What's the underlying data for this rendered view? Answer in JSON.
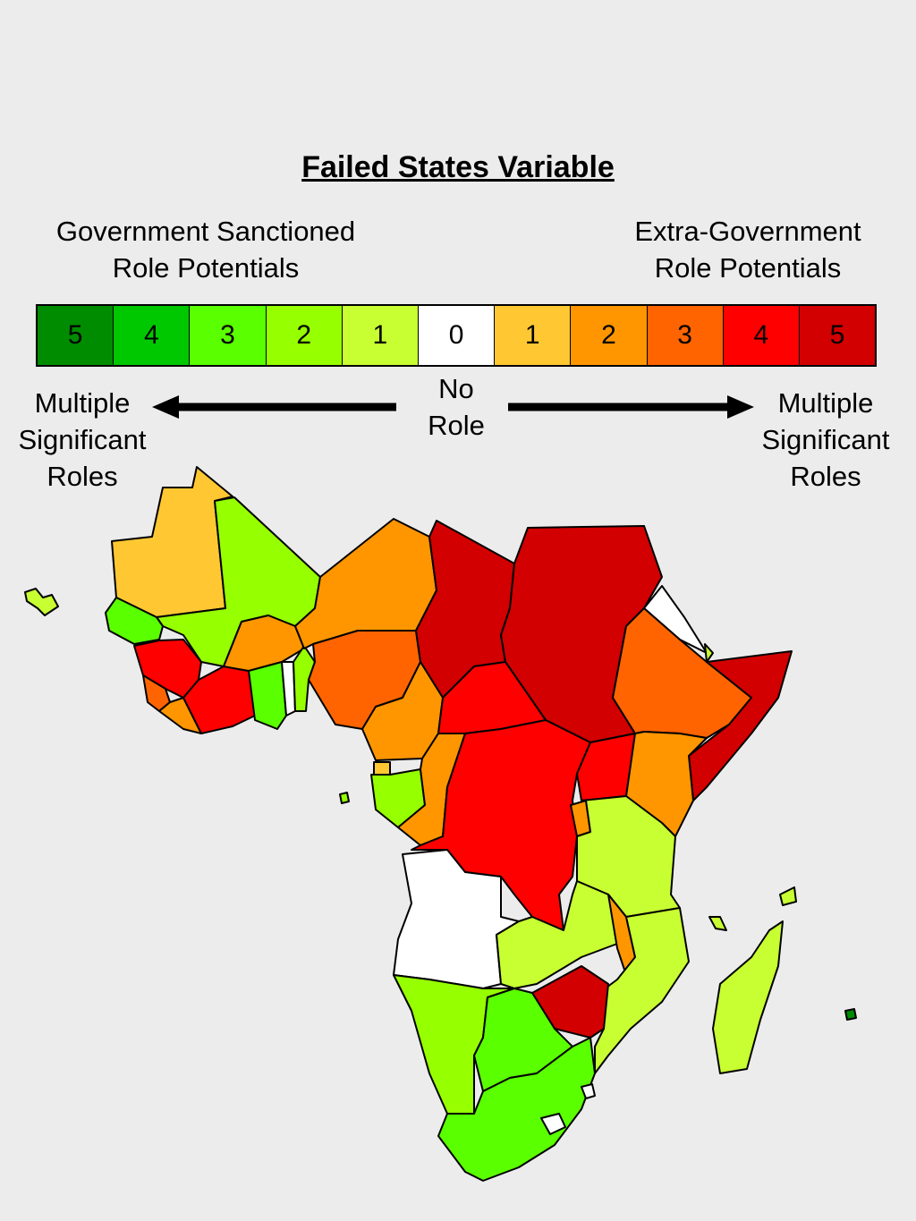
{
  "title": "Failed States Variable",
  "left_heading": [
    "Government Sanctioned",
    "Role Potentials"
  ],
  "right_heading": [
    "Extra-Government",
    "Role Potentials"
  ],
  "scale": [
    {
      "label": "5",
      "color": "#008c00"
    },
    {
      "label": "4",
      "color": "#00c800"
    },
    {
      "label": "3",
      "color": "#5aff00"
    },
    {
      "label": "2",
      "color": "#96ff00"
    },
    {
      "label": "1",
      "color": "#c8ff32"
    },
    {
      "label": "0",
      "color": "#ffffff"
    },
    {
      "label": "1",
      "color": "#ffc832"
    },
    {
      "label": "2",
      "color": "#ff9600"
    },
    {
      "label": "3",
      "color": "#ff6400"
    },
    {
      "label": "4",
      "color": "#ff0000"
    },
    {
      "label": "5",
      "color": "#d20000"
    }
  ],
  "no_role": [
    "No",
    "Role"
  ],
  "multiple_left": [
    "Multiple",
    "Significant",
    "Roles"
  ],
  "multiple_right": [
    "Multiple",
    "Significant",
    "Roles"
  ]
}
